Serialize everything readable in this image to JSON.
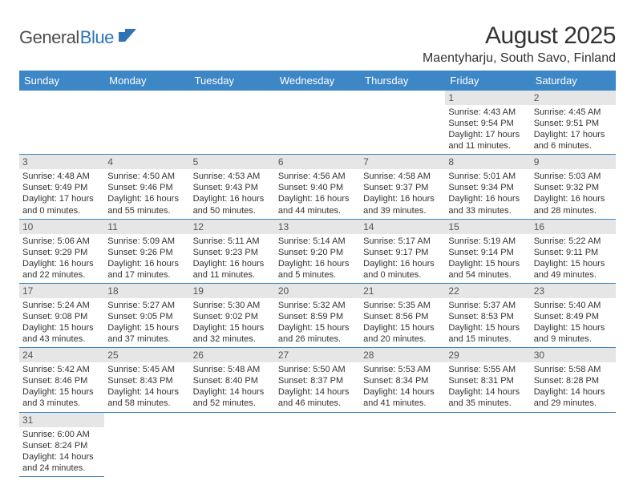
{
  "brand": {
    "part1": "General",
    "part2": "Blue"
  },
  "title": "August 2025",
  "location": "Maentyharju, South Savo, Finland",
  "colors": {
    "header_bg": "#3d87c7",
    "header_text": "#ffffff",
    "daynum_bg": "#e6e6e6",
    "row_divider": "#3d87c7",
    "logo_gray": "#4d4d4d",
    "logo_blue": "#2e74b5",
    "text": "#333333",
    "background": "#ffffff"
  },
  "typography": {
    "title_fontsize": 30,
    "location_fontsize": 16,
    "dow_fontsize": 13,
    "daynum_fontsize": 12,
    "detail_fontsize": 11,
    "font_family": "Arial"
  },
  "days_of_week": [
    "Sunday",
    "Monday",
    "Tuesday",
    "Wednesday",
    "Thursday",
    "Friday",
    "Saturday"
  ],
  "weeks": [
    [
      null,
      null,
      null,
      null,
      null,
      {
        "n": "1",
        "sr": "Sunrise: 4:43 AM",
        "ss": "Sunset: 9:54 PM",
        "dl": "Daylight: 17 hours and 11 minutes."
      },
      {
        "n": "2",
        "sr": "Sunrise: 4:45 AM",
        "ss": "Sunset: 9:51 PM",
        "dl": "Daylight: 17 hours and 6 minutes."
      }
    ],
    [
      {
        "n": "3",
        "sr": "Sunrise: 4:48 AM",
        "ss": "Sunset: 9:49 PM",
        "dl": "Daylight: 17 hours and 0 minutes."
      },
      {
        "n": "4",
        "sr": "Sunrise: 4:50 AM",
        "ss": "Sunset: 9:46 PM",
        "dl": "Daylight: 16 hours and 55 minutes."
      },
      {
        "n": "5",
        "sr": "Sunrise: 4:53 AM",
        "ss": "Sunset: 9:43 PM",
        "dl": "Daylight: 16 hours and 50 minutes."
      },
      {
        "n": "6",
        "sr": "Sunrise: 4:56 AM",
        "ss": "Sunset: 9:40 PM",
        "dl": "Daylight: 16 hours and 44 minutes."
      },
      {
        "n": "7",
        "sr": "Sunrise: 4:58 AM",
        "ss": "Sunset: 9:37 PM",
        "dl": "Daylight: 16 hours and 39 minutes."
      },
      {
        "n": "8",
        "sr": "Sunrise: 5:01 AM",
        "ss": "Sunset: 9:34 PM",
        "dl": "Daylight: 16 hours and 33 minutes."
      },
      {
        "n": "9",
        "sr": "Sunrise: 5:03 AM",
        "ss": "Sunset: 9:32 PM",
        "dl": "Daylight: 16 hours and 28 minutes."
      }
    ],
    [
      {
        "n": "10",
        "sr": "Sunrise: 5:06 AM",
        "ss": "Sunset: 9:29 PM",
        "dl": "Daylight: 16 hours and 22 minutes."
      },
      {
        "n": "11",
        "sr": "Sunrise: 5:09 AM",
        "ss": "Sunset: 9:26 PM",
        "dl": "Daylight: 16 hours and 17 minutes."
      },
      {
        "n": "12",
        "sr": "Sunrise: 5:11 AM",
        "ss": "Sunset: 9:23 PM",
        "dl": "Daylight: 16 hours and 11 minutes."
      },
      {
        "n": "13",
        "sr": "Sunrise: 5:14 AM",
        "ss": "Sunset: 9:20 PM",
        "dl": "Daylight: 16 hours and 5 minutes."
      },
      {
        "n": "14",
        "sr": "Sunrise: 5:17 AM",
        "ss": "Sunset: 9:17 PM",
        "dl": "Daylight: 16 hours and 0 minutes."
      },
      {
        "n": "15",
        "sr": "Sunrise: 5:19 AM",
        "ss": "Sunset: 9:14 PM",
        "dl": "Daylight: 15 hours and 54 minutes."
      },
      {
        "n": "16",
        "sr": "Sunrise: 5:22 AM",
        "ss": "Sunset: 9:11 PM",
        "dl": "Daylight: 15 hours and 49 minutes."
      }
    ],
    [
      {
        "n": "17",
        "sr": "Sunrise: 5:24 AM",
        "ss": "Sunset: 9:08 PM",
        "dl": "Daylight: 15 hours and 43 minutes."
      },
      {
        "n": "18",
        "sr": "Sunrise: 5:27 AM",
        "ss": "Sunset: 9:05 PM",
        "dl": "Daylight: 15 hours and 37 minutes."
      },
      {
        "n": "19",
        "sr": "Sunrise: 5:30 AM",
        "ss": "Sunset: 9:02 PM",
        "dl": "Daylight: 15 hours and 32 minutes."
      },
      {
        "n": "20",
        "sr": "Sunrise: 5:32 AM",
        "ss": "Sunset: 8:59 PM",
        "dl": "Daylight: 15 hours and 26 minutes."
      },
      {
        "n": "21",
        "sr": "Sunrise: 5:35 AM",
        "ss": "Sunset: 8:56 PM",
        "dl": "Daylight: 15 hours and 20 minutes."
      },
      {
        "n": "22",
        "sr": "Sunrise: 5:37 AM",
        "ss": "Sunset: 8:53 PM",
        "dl": "Daylight: 15 hours and 15 minutes."
      },
      {
        "n": "23",
        "sr": "Sunrise: 5:40 AM",
        "ss": "Sunset: 8:49 PM",
        "dl": "Daylight: 15 hours and 9 minutes."
      }
    ],
    [
      {
        "n": "24",
        "sr": "Sunrise: 5:42 AM",
        "ss": "Sunset: 8:46 PM",
        "dl": "Daylight: 15 hours and 3 minutes."
      },
      {
        "n": "25",
        "sr": "Sunrise: 5:45 AM",
        "ss": "Sunset: 8:43 PM",
        "dl": "Daylight: 14 hours and 58 minutes."
      },
      {
        "n": "26",
        "sr": "Sunrise: 5:48 AM",
        "ss": "Sunset: 8:40 PM",
        "dl": "Daylight: 14 hours and 52 minutes."
      },
      {
        "n": "27",
        "sr": "Sunrise: 5:50 AM",
        "ss": "Sunset: 8:37 PM",
        "dl": "Daylight: 14 hours and 46 minutes."
      },
      {
        "n": "28",
        "sr": "Sunrise: 5:53 AM",
        "ss": "Sunset: 8:34 PM",
        "dl": "Daylight: 14 hours and 41 minutes."
      },
      {
        "n": "29",
        "sr": "Sunrise: 5:55 AM",
        "ss": "Sunset: 8:31 PM",
        "dl": "Daylight: 14 hours and 35 minutes."
      },
      {
        "n": "30",
        "sr": "Sunrise: 5:58 AM",
        "ss": "Sunset: 8:28 PM",
        "dl": "Daylight: 14 hours and 29 minutes."
      }
    ],
    [
      {
        "n": "31",
        "sr": "Sunrise: 6:00 AM",
        "ss": "Sunset: 8:24 PM",
        "dl": "Daylight: 14 hours and 24 minutes."
      },
      null,
      null,
      null,
      null,
      null,
      null
    ]
  ]
}
